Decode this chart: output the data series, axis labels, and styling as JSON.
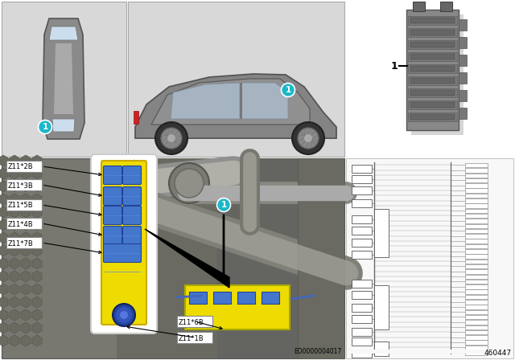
{
  "bg_color": "#ffffff",
  "light_gray_panel": "#d8d8d8",
  "car_body_color": "#888888",
  "car_window_color": "#aabbcc",
  "teal": "#1ab8c8",
  "yellow": "#eedc00",
  "blue_connector": "#4477cc",
  "blue_connector2": "#3366bb",
  "engine_bg": "#787870",
  "engine_bg2": "#686860",
  "engine_bg3": "#585850",
  "white": "#ffffff",
  "black": "#000000",
  "label_border": "#888888",
  "module_gray": "#888888",
  "module_dark": "#666666",
  "module_light": "#aaaaaa",
  "wiring_line": "#555555",
  "wiring_bg": "#f0f0f0",
  "component_labels": [
    "Z11*2B",
    "Z11*3B",
    "Z11*5B",
    "Z11*4B",
    "Z11*7B"
  ],
  "bottom_labels": [
    "Z11*6B",
    "Z11*1B"
  ],
  "part_number": "EO0000004017",
  "page_number": "460447",
  "part_ref": "1"
}
